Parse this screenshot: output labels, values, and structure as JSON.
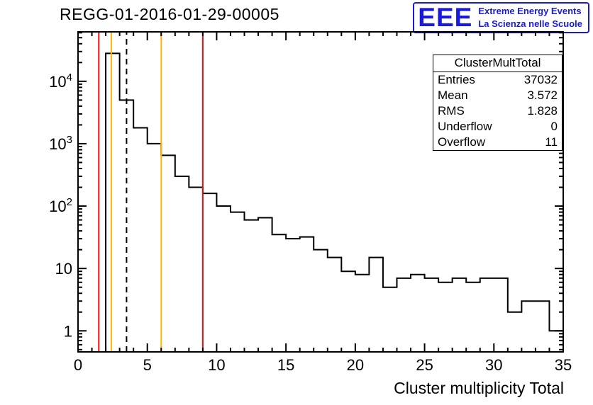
{
  "logo": {
    "acronym": "EEE",
    "line1": "Extreme Energy Events",
    "line2": "La Scienza nelle Scuole",
    "color": "#1919dd"
  },
  "stats_box": {
    "title": "ClusterMultTotal",
    "rows": [
      {
        "label": "Entries",
        "value": "37032"
      },
      {
        "label": "Mean",
        "value": "3.572"
      },
      {
        "label": "RMS",
        "value": "1.828"
      },
      {
        "label": "Underflow",
        "value": "0"
      },
      {
        "label": "Overflow",
        "value": "11"
      }
    ]
  },
  "chart_data": {
    "type": "histogram-step",
    "title": "REGG-01-2016-01-29-00005",
    "xlabel": "Cluster multiplicity Total",
    "ylabel": "",
    "x_range": [
      0,
      35
    ],
    "y_scale": "log",
    "y_range": [
      0.46,
      62000
    ],
    "x_major_ticks": [
      0,
      5,
      10,
      15,
      20,
      25,
      30,
      35
    ],
    "y_major_ticks": [
      1,
      10,
      100,
      1000,
      10000
    ],
    "grid": false,
    "bin_width": 1,
    "bin_start": 0,
    "counts": [
      0,
      0,
      28000,
      5000,
      1800,
      1000,
      650,
      300,
      200,
      160,
      100,
      80,
      60,
      65,
      35,
      30,
      32,
      20,
      15,
      9,
      8,
      15,
      5,
      7,
      8,
      7,
      6,
      7,
      6,
      7,
      7,
      2,
      3,
      3,
      1
    ],
    "line_color": "#000000",
    "vertical_lines": [
      {
        "x": 1.5,
        "color": "#dd1111",
        "style": "solid"
      },
      {
        "x": 2.4,
        "color": "#fcb800",
        "style": "solid"
      },
      {
        "x": 3.5,
        "color": "#000000",
        "style": "dashed"
      },
      {
        "x": 6.0,
        "color": "#fcb800",
        "style": "solid"
      },
      {
        "x": 9.0,
        "color": "#dd1111",
        "style": "solid"
      }
    ]
  }
}
